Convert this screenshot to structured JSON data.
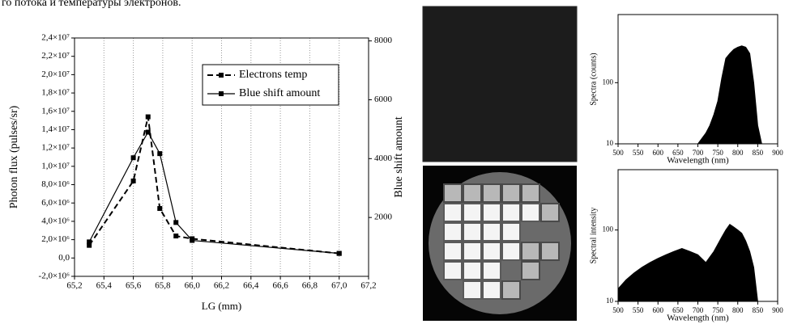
{
  "caption": "го потока и температуры электронов.",
  "chart_data": [
    {
      "type": "line",
      "xlabel": "LG (mm)",
      "ylabel": "Photon flux (pulses/sr)",
      "y2label": "Blue shift amount",
      "xlim": [
        65.2,
        67.2
      ],
      "xticks": [
        {
          "value": 65.2,
          "label": "65,2"
        },
        {
          "value": 65.4,
          "label": "65,4"
        },
        {
          "value": 65.6,
          "label": "65,6"
        },
        {
          "value": 65.8,
          "label": "65,8"
        },
        {
          "value": 66.0,
          "label": "66,0"
        },
        {
          "value": 66.2,
          "label": "66,2"
        },
        {
          "value": 66.4,
          "label": "66,4"
        },
        {
          "value": 66.6,
          "label": "66,6"
        },
        {
          "value": 66.8,
          "label": "66,8"
        },
        {
          "value": 67.0,
          "label": "67,0"
        },
        {
          "value": 67.2,
          "label": "67,2"
        }
      ],
      "ylim": [
        -2000000,
        24000000
      ],
      "yticks": [
        {
          "value": -2000000,
          "label": "-2,0×10⁶"
        },
        {
          "value": 0,
          "label": "0,0"
        },
        {
          "value": 2000000,
          "label": "2,0×10⁶"
        },
        {
          "value": 4000000,
          "label": "4,0×10⁶"
        },
        {
          "value": 6000000,
          "label": "6,0×10⁶"
        },
        {
          "value": 8000000,
          "label": "8,0×10⁶"
        },
        {
          "value": 10000000,
          "label": "1,0×10⁷"
        },
        {
          "value": 12000000,
          "label": "1,2×10⁷"
        },
        {
          "value": 14000000,
          "label": "1,4×10⁷"
        },
        {
          "value": 16000000,
          "label": "1,6×10⁷"
        },
        {
          "value": 18000000,
          "label": "1,8×10⁷"
        },
        {
          "value": 20000000,
          "label": "2,0×10⁷"
        },
        {
          "value": 22000000,
          "label": "2,2×10⁷"
        },
        {
          "value": 24000000,
          "label": "2,4×10⁷"
        }
      ],
      "y2lim": [
        0,
        8100
      ],
      "y2ticks": [
        2000,
        4000,
        6000,
        8000
      ],
      "grid": true,
      "legend": "upper right",
      "x": [
        65.3,
        65.6,
        65.7,
        65.78,
        65.89,
        66.0,
        67.0
      ],
      "series": [
        {
          "name": "Electrons temp",
          "color": "#000000",
          "dash": true,
          "values": [
            1380000,
            8400000,
            15400000,
            5400000,
            2400000,
            2100000,
            500000
          ]
        },
        {
          "name": "Blue shift amount",
          "color": "#000000",
          "axis": "y2",
          "values": [
            1170,
            4030,
            4900,
            4170,
            1830,
            1220,
            780
          ]
        }
      ]
    },
    {
      "type": "area",
      "ylabel": "Spectra (counts)",
      "xlabel": "Wavelength (nm)",
      "log_y": true,
      "color": "#000000",
      "xlim": [
        500,
        900
      ],
      "xticks": [
        500,
        550,
        600,
        650,
        700,
        750,
        800,
        850,
        900
      ],
      "ylim": [
        10,
        1300
      ],
      "yticks": [
        10,
        100
      ],
      "x": [
        500,
        700,
        720,
        730,
        740,
        750,
        760,
        770,
        780,
        790,
        800,
        810,
        820,
        830,
        840,
        850,
        860
      ],
      "values": [
        10,
        10,
        15,
        20,
        30,
        50,
        120,
        250,
        300,
        350,
        380,
        400,
        380,
        300,
        100,
        20,
        10
      ]
    },
    {
      "type": "area",
      "ylabel": "Spectral intensity",
      "xlabel": "Wavelength (nm)",
      "log_y": true,
      "color": "#000000",
      "xlim": [
        500,
        900
      ],
      "xticks": [
        500,
        550,
        600,
        650,
        700,
        750,
        800,
        850,
        900
      ],
      "ylim": [
        10,
        700
      ],
      "yticks": [
        10,
        100
      ],
      "x": [
        500,
        520,
        540,
        560,
        580,
        600,
        620,
        640,
        660,
        680,
        700,
        720,
        740,
        760,
        770,
        780,
        790,
        800,
        810,
        820,
        830,
        840,
        850,
        860
      ],
      "values": [
        15,
        20,
        25,
        30,
        35,
        40,
        45,
        50,
        55,
        50,
        45,
        35,
        50,
        80,
        100,
        120,
        110,
        100,
        90,
        70,
        50,
        30,
        10,
        10
      ]
    }
  ]
}
